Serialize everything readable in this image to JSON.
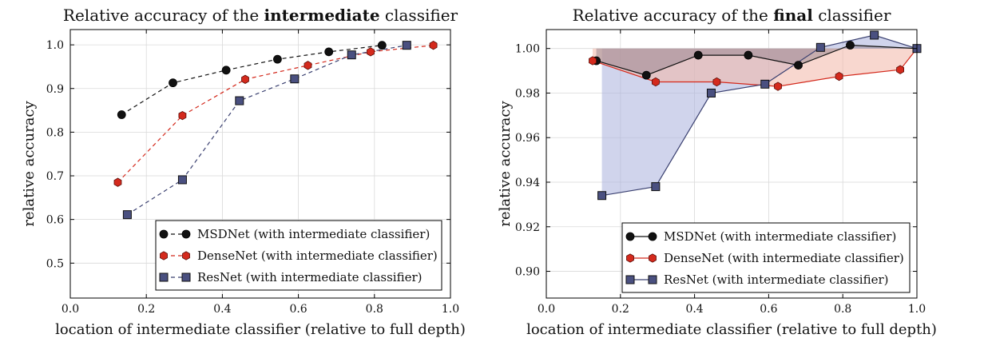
{
  "colors": {
    "msdnet": "#111111",
    "densenet": "#d42a1d",
    "resnet": "#3a4070",
    "densenet_fill": "#f3b7a8",
    "resnet_fill": "#aab0dc",
    "msdnet_fill": "#8a7a86",
    "grid": "#d9d9d9"
  },
  "chart_data": [
    {
      "type": "line",
      "title_parts": [
        "Relative accuracy of the ",
        "intermediate",
        " classifier"
      ],
      "title_bold_index": 1,
      "xlabel": "location of intermediate classifier (relative to full depth)",
      "ylabel": "relative accuracy",
      "xlim": [
        0.0,
        1.0
      ],
      "ylim": [
        0.42,
        1.035
      ],
      "xticks": [
        0.0,
        0.2,
        0.4,
        0.6,
        0.8,
        1.0
      ],
      "xtick_labels": [
        "0.0",
        "0.2",
        "0.4",
        "0.6",
        "0.8",
        "1.0"
      ],
      "yticks": [
        0.5,
        0.6,
        0.7,
        0.8,
        0.9,
        1.0
      ],
      "ytick_labels": [
        "0.5",
        "0.6",
        "0.7",
        "0.8",
        "0.9",
        "1.0"
      ],
      "grid": true,
      "legend_position": "bottom-right",
      "series": [
        {
          "name": "MSDNet (with intermediate classifier)",
          "key": "msdnet",
          "marker": "circle",
          "linestyle": "dashed",
          "x": [
            0.135,
            0.27,
            0.41,
            0.545,
            0.68,
            0.82
          ],
          "y": [
            0.84,
            0.913,
            0.942,
            0.967,
            0.984,
            0.999
          ]
        },
        {
          "name": "DenseNet (with intermediate classifier)",
          "key": "densenet",
          "marker": "hexagon",
          "linestyle": "dashed",
          "x": [
            0.125,
            0.295,
            0.46,
            0.625,
            0.79,
            0.955
          ],
          "y": [
            0.685,
            0.838,
            0.921,
            0.953,
            0.984,
            0.999
          ]
        },
        {
          "name": "ResNet (with intermediate classifier)",
          "key": "resnet",
          "marker": "square",
          "linestyle": "dashed",
          "x": [
            0.15,
            0.295,
            0.445,
            0.59,
            0.74,
            0.885
          ],
          "y": [
            0.611,
            0.691,
            0.872,
            0.922,
            0.977,
            0.999
          ]
        }
      ]
    },
    {
      "type": "line",
      "title_parts": [
        "Relative accuracy of the ",
        "final",
        " classifier"
      ],
      "title_bold_index": 1,
      "xlabel": "location of intermediate classifier (relative to full depth)",
      "ylabel": "relative accuracy",
      "xlim": [
        0.0,
        1.0
      ],
      "ylim": [
        0.888,
        1.0085
      ],
      "xticks": [
        0.0,
        0.2,
        0.4,
        0.6,
        0.8,
        1.0
      ],
      "xtick_labels": [
        "0.0",
        "0.2",
        "0.4",
        "0.6",
        "0.8",
        "1.0"
      ],
      "yticks": [
        0.9,
        0.92,
        0.94,
        0.96,
        0.98,
        1.0
      ],
      "ytick_labels": [
        "0.90",
        "0.92",
        "0.94",
        "0.96",
        "0.98",
        "1.00"
      ],
      "grid": true,
      "legend_position": "bottom-right",
      "fill_between_baseline": 1.0,
      "series": [
        {
          "name": "MSDNet (with intermediate classifier)",
          "key": "msdnet",
          "marker": "circle",
          "linestyle": "solid",
          "x": [
            0.135,
            0.27,
            0.41,
            0.545,
            0.68,
            0.82,
            1.0
          ],
          "y": [
            0.9945,
            0.988,
            0.997,
            0.997,
            0.9925,
            1.0015,
            1.0
          ]
        },
        {
          "name": "DenseNet (with intermediate classifier)",
          "key": "densenet",
          "marker": "hexagon",
          "linestyle": "solid",
          "x": [
            0.125,
            0.295,
            0.46,
            0.625,
            0.79,
            0.955,
            1.0
          ],
          "y": [
            0.9945,
            0.985,
            0.985,
            0.983,
            0.9875,
            0.9905,
            1.0
          ]
        },
        {
          "name": "ResNet (with intermediate classifier)",
          "key": "resnet",
          "marker": "square",
          "linestyle": "solid",
          "x": [
            0.15,
            0.295,
            0.445,
            0.59,
            0.74,
            0.885,
            1.0
          ],
          "y": [
            0.934,
            0.938,
            0.98,
            0.984,
            1.0005,
            1.006,
            1.0
          ]
        }
      ]
    }
  ]
}
